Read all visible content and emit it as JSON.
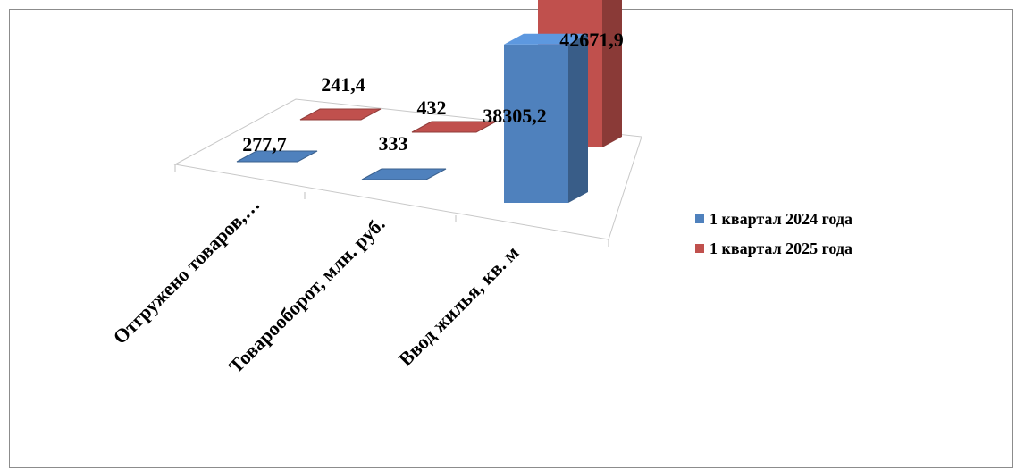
{
  "chart_data": {
    "type": "bar",
    "categories": [
      "Отгружено товаров,…",
      "Товарооборот, млн. руб.",
      "Ввод жилья, кв. м"
    ],
    "series": [
      {
        "name": "1 квартал 2024 года",
        "values": [
          277.7,
          333,
          38305.2
        ],
        "labels": [
          "277,7",
          "333",
          "38305,2"
        ],
        "color": "#4f81bd"
      },
      {
        "name": "1 квартал 2025 года",
        "values": [
          241.4,
          432,
          42671.9
        ],
        "labels": [
          "241,4",
          "432",
          "42671,9"
        ],
        "color": "#c0504d"
      }
    ],
    "ylim": [
      0,
      45000
    ],
    "legend_position": "right",
    "grid": false
  }
}
